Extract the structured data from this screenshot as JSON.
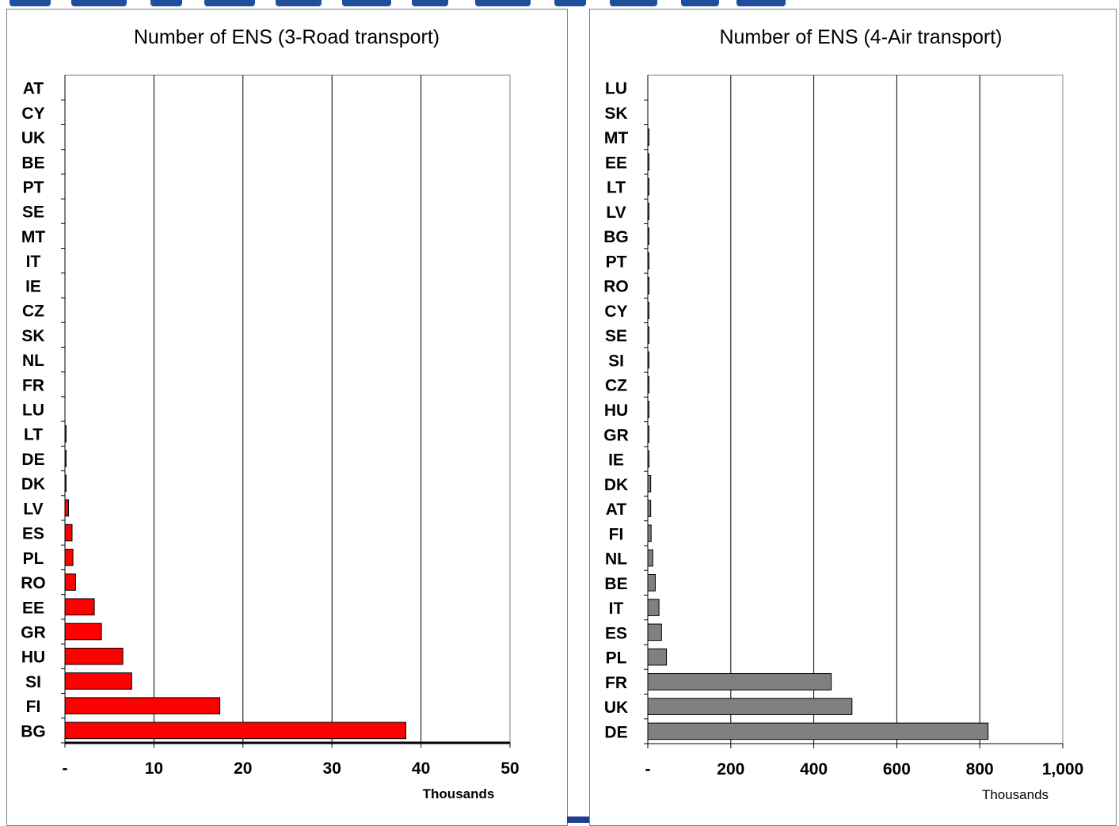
{
  "chart_data": [
    {
      "type": "bar",
      "orientation": "horizontal",
      "title": "Number of ENS (3-Road transport)",
      "xlabel": "Thousands",
      "xlim": [
        0,
        50
      ],
      "xticks": [
        "-",
        "10",
        "20",
        "30",
        "40",
        "50"
      ],
      "grid": true,
      "bar_color": "#ff0000",
      "categories": [
        "AT",
        "CY",
        "UK",
        "BE",
        "PT",
        "SE",
        "MT",
        "IT",
        "IE",
        "CZ",
        "SK",
        "NL",
        "FR",
        "LU",
        "LT",
        "DE",
        "DK",
        "LV",
        "ES",
        "PL",
        "RO",
        "EE",
        "GR",
        "HU",
        "SI",
        "FI",
        "BG"
      ],
      "values": [
        0,
        0,
        0,
        0,
        0,
        0,
        0,
        0,
        0,
        0,
        0,
        0,
        0,
        0,
        0.1,
        0.1,
        0.1,
        0.4,
        0.8,
        0.9,
        1.2,
        3.3,
        4.1,
        6.5,
        7.5,
        17.4,
        38.3
      ]
    },
    {
      "type": "bar",
      "orientation": "horizontal",
      "title": "Number of ENS (4-Air transport)",
      "xlabel": "Thousands",
      "xlim": [
        0,
        1000
      ],
      "xticks": [
        "-",
        "200",
        "400",
        "600",
        "800",
        "1,000"
      ],
      "grid": true,
      "bar_color": "#808080",
      "categories": [
        "LU",
        "SK",
        "MT",
        "EE",
        "LT",
        "LV",
        "BG",
        "PT",
        "RO",
        "CY",
        "SE",
        "SI",
        "CZ",
        "HU",
        "GR",
        "IE",
        "DK",
        "AT",
        "FI",
        "NL",
        "BE",
        "IT",
        "ES",
        "PL",
        "FR",
        "UK",
        "DE"
      ],
      "values": [
        0,
        0,
        1,
        1,
        1,
        1,
        1,
        1,
        1,
        1,
        1,
        1,
        1,
        1,
        1,
        3,
        7,
        7,
        8,
        12,
        18,
        27,
        33,
        45,
        442,
        492,
        820
      ]
    }
  ]
}
